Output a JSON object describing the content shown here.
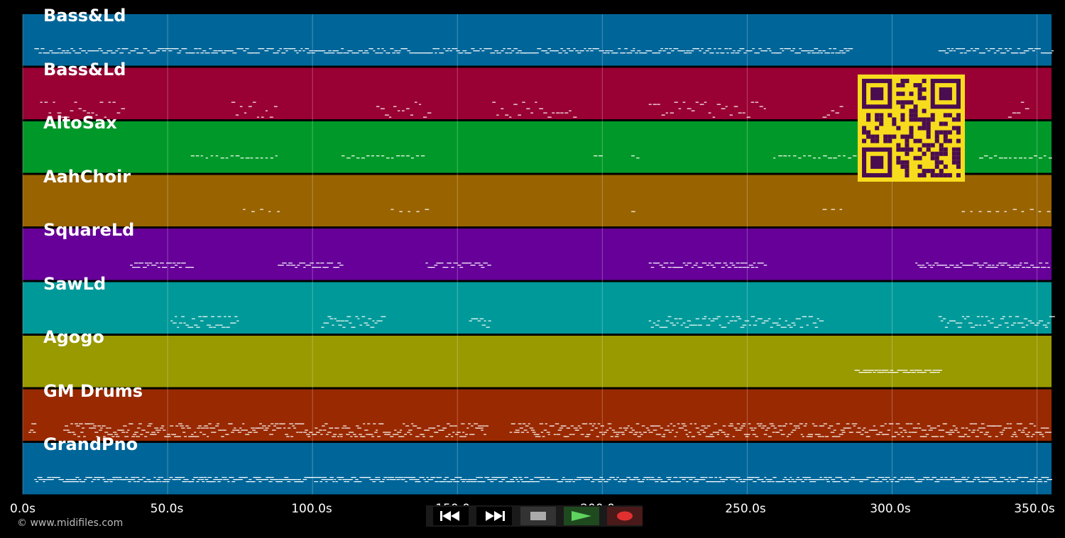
{
  "colors": {
    "background": "#000000",
    "lane_colors": [
      "#006699",
      "#990033",
      "#009929",
      "#996300",
      "#660099",
      "#009999",
      "#999900",
      "#992900",
      "#006699"
    ],
    "qr_fg": "#4a0d4f",
    "qr_bg": "#f7dc1d"
  },
  "tracks": [
    {
      "name": "Bass&Ld"
    },
    {
      "name": "Bass&Ld"
    },
    {
      "name": "AltoSax"
    },
    {
      "name": "AahChoir"
    },
    {
      "name": "SquareLd"
    },
    {
      "name": "SawLd"
    },
    {
      "name": "Agogo"
    },
    {
      "name": "GM Drums"
    },
    {
      "name": "GrandPno"
    }
  ],
  "timeline": {
    "ticks": [
      "0.0s",
      "50.0s",
      "100.0s",
      "150.0s",
      "200.0s",
      "250.0s",
      "300.0s",
      "350.0s"
    ],
    "tick_values": [
      0,
      50,
      100,
      150,
      200,
      250,
      300,
      350
    ],
    "max_seconds": 355
  },
  "copyright": "© www.midifiles.com",
  "transport": {
    "buttons": [
      {
        "name": "rewind",
        "icon": "rewind-icon"
      },
      {
        "name": "fast-forward",
        "icon": "fast-forward-icon"
      },
      {
        "name": "stop",
        "icon": "stop-icon"
      },
      {
        "name": "play",
        "icon": "play-icon"
      },
      {
        "name": "record",
        "icon": "record-icon"
      }
    ]
  },
  "qr_code": {
    "icon": "qr-code-icon"
  }
}
